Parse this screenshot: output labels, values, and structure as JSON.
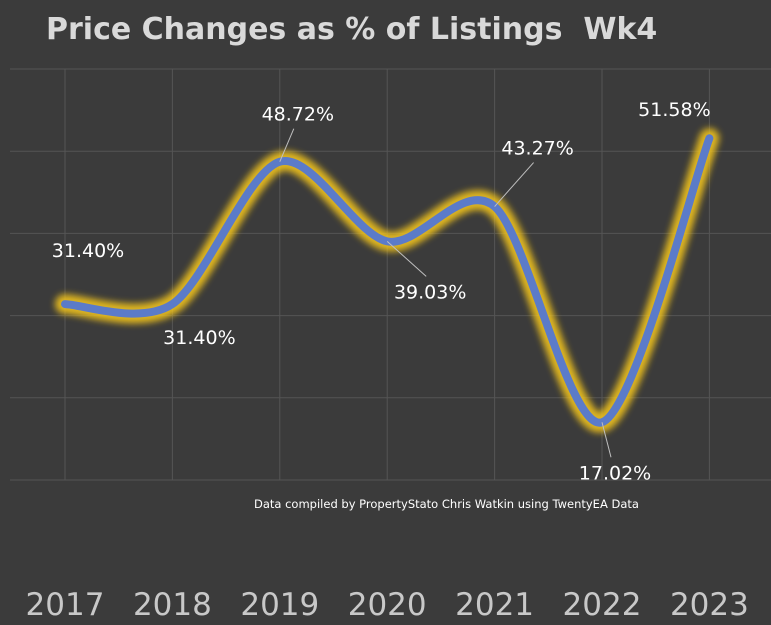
{
  "chart_data": {
    "type": "line",
    "title": "Price Changes as % of Listings  Wk4",
    "categories": [
      "2017",
      "2018",
      "2019",
      "2020",
      "2021",
      "2022",
      "2023"
    ],
    "series": [
      {
        "values": [
          31.4,
          31.4,
          48.72,
          39.03,
          43.27,
          17.02,
          51.58
        ],
        "labels": [
          "31.40%",
          "31.40%",
          "48.72%",
          "39.03%",
          "43.27%",
          "17.02%",
          "51.58%"
        ]
      }
    ],
    "ylim": [
      10,
      60
    ],
    "grid": true,
    "smooth": true,
    "line_color": "#5b7bc9",
    "glow_color": "#f0c21e",
    "annotation": "Data compiled by PropertyStato Chris Watkin using TwentyEA Data"
  }
}
